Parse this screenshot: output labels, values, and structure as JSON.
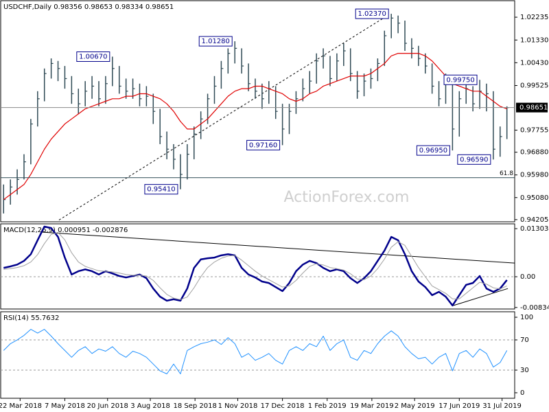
{
  "chart_data": {
    "type": "ohlc",
    "title": "USDCHF,Daily  0.98356 0.98653 0.98334 0.98651",
    "watermark": "ActionForex.com",
    "bar_color": "#2f4a55",
    "xlim": [
      "2018-03-02",
      "2019-08-13"
    ],
    "xticks": [
      {
        "value": "2018-03-22",
        "label": "22 Mar 2018"
      },
      {
        "value": "2018-05-07",
        "label": "7 May 2018"
      },
      {
        "value": "2018-06-20",
        "label": "20 Jun 2018"
      },
      {
        "value": "2018-08-03",
        "label": "3 Aug 2018"
      },
      {
        "value": "2018-09-18",
        "label": "18 Sep 2018"
      },
      {
        "value": "2018-11-01",
        "label": "1 Nov 2018"
      },
      {
        "value": "2018-12-17",
        "label": "17 Dec 2018"
      },
      {
        "value": "2019-02-01",
        "label": "1 Feb 2019"
      },
      {
        "value": "2019-03-19",
        "label": "19 Mar 2019"
      },
      {
        "value": "2019-05-02",
        "label": "2 May 2019"
      },
      {
        "value": "2019-06-17",
        "label": "17 Jun 2019"
      },
      {
        "value": "2019-07-31",
        "label": "31 Jul 2019"
      }
    ],
    "x": [
      "2018-03-05",
      "2018-03-12",
      "2018-03-19",
      "2018-03-26",
      "2018-04-02",
      "2018-04-09",
      "2018-04-16",
      "2018-04-23",
      "2018-04-30",
      "2018-05-07",
      "2018-05-14",
      "2018-05-21",
      "2018-05-28",
      "2018-06-04",
      "2018-06-11",
      "2018-06-18",
      "2018-06-25",
      "2018-07-02",
      "2018-07-09",
      "2018-07-16",
      "2018-07-23",
      "2018-07-30",
      "2018-08-06",
      "2018-08-13",
      "2018-08-20",
      "2018-08-27",
      "2018-09-03",
      "2018-09-10",
      "2018-09-17",
      "2018-09-24",
      "2018-10-01",
      "2018-10-08",
      "2018-10-15",
      "2018-10-22",
      "2018-10-29",
      "2018-11-05",
      "2018-11-12",
      "2018-11-19",
      "2018-11-26",
      "2018-12-03",
      "2018-12-10",
      "2018-12-17",
      "2018-12-24",
      "2018-12-31",
      "2019-01-07",
      "2019-01-14",
      "2019-01-21",
      "2019-01-28",
      "2019-02-04",
      "2019-02-11",
      "2019-02-18",
      "2019-02-25",
      "2019-03-04",
      "2019-03-11",
      "2019-03-18",
      "2019-03-25",
      "2019-04-01",
      "2019-04-08",
      "2019-04-15",
      "2019-04-22",
      "2019-04-29",
      "2019-05-06",
      "2019-05-13",
      "2019-05-20",
      "2019-05-27",
      "2019-06-03",
      "2019-06-10",
      "2019-06-17",
      "2019-06-24",
      "2019-07-01",
      "2019-07-08",
      "2019-07-15",
      "2019-07-22",
      "2019-07-29",
      "2019-08-05"
    ],
    "high": [
      0.956,
      0.958,
      0.962,
      0.968,
      0.982,
      0.993,
      1.002,
      1.006,
      1.005,
      1.003,
      0.999,
      0.994,
      0.997,
      0.999,
      0.997,
      0.999,
      1.0067,
      1.003,
      0.998,
      0.998,
      0.996,
      0.995,
      0.992,
      0.986,
      0.977,
      0.972,
      0.968,
      0.972,
      0.979,
      0.985,
      0.992,
      0.999,
      1.005,
      1.01,
      1.0128,
      1.01,
      1.004,
      0.998,
      0.996,
      0.997,
      0.995,
      0.988,
      0.988,
      0.993,
      0.998,
      1.001,
      1.008,
      1.01,
      1.007,
      1.008,
      1.012,
      1.01,
      1.001,
      1.0,
      1.002,
      1.006,
      1.017,
      1.0237,
      1.023,
      1.021,
      1.014,
      1.011,
      1.008,
      1.004,
      0.997,
      1.0,
      0.998,
      0.993,
      0.997,
      0.995,
      0.9975,
      0.996,
      0.993,
      0.979,
      0.987
    ],
    "low": [
      0.9445,
      0.948,
      0.952,
      0.958,
      0.964,
      0.979,
      0.989,
      0.998,
      0.997,
      0.994,
      0.988,
      0.984,
      0.987,
      0.99,
      0.987,
      0.988,
      0.995,
      0.992,
      0.99,
      0.99,
      0.987,
      0.987,
      0.98,
      0.972,
      0.966,
      0.962,
      0.9541,
      0.958,
      0.966,
      0.974,
      0.98,
      0.988,
      0.994,
      1.0,
      1.004,
      1.0,
      0.993,
      0.99,
      0.986,
      0.988,
      0.982,
      0.9716,
      0.976,
      0.984,
      0.989,
      0.992,
      0.996,
      1.002,
      0.995,
      0.997,
      1.003,
      0.997,
      0.99,
      0.991,
      0.994,
      0.997,
      1.003,
      1.014,
      1.016,
      1.009,
      1.006,
      1.003,
      1.0,
      0.992,
      0.987,
      0.988,
      0.9695,
      0.975,
      0.988,
      0.985,
      0.986,
      0.985,
      0.9659,
      0.967,
      0.974
    ],
    "close": [
      0.95,
      0.955,
      0.958,
      0.965,
      0.98,
      0.99,
      1.0,
      1.004,
      1.002,
      0.998,
      0.992,
      0.988,
      0.993,
      0.995,
      0.99,
      0.996,
      1.002,
      0.995,
      0.993,
      0.994,
      0.99,
      0.991,
      0.985,
      0.975,
      0.97,
      0.966,
      0.96,
      0.968,
      0.976,
      0.982,
      0.99,
      0.995,
      1.002,
      1.008,
      1.01,
      1.003,
      0.996,
      0.993,
      0.99,
      0.994,
      0.985,
      0.978,
      0.985,
      0.99,
      0.994,
      0.997,
      1.005,
      1.007,
      0.998,
      1.005,
      1.009,
      1.0,
      0.993,
      0.997,
      0.998,
      1.004,
      1.015,
      1.022,
      1.02,
      1.012,
      1.01,
      1.006,
      1.003,
      0.995,
      0.99,
      0.997,
      0.978,
      0.99,
      0.994,
      0.988,
      0.993,
      0.992,
      0.97,
      0.975,
      0.9865
    ],
    "series": [
      {
        "color": "#e00000",
        "values": [
          0.95,
          0.952,
          0.954,
          0.956,
          0.96,
          0.965,
          0.97,
          0.974,
          0.977,
          0.98,
          0.982,
          0.984,
          0.986,
          0.987,
          0.988,
          0.989,
          0.99,
          0.99,
          0.991,
          0.991,
          0.992,
          0.992,
          0.991,
          0.99,
          0.988,
          0.985,
          0.981,
          0.978,
          0.978,
          0.98,
          0.982,
          0.985,
          0.988,
          0.991,
          0.993,
          0.994,
          0.994,
          0.995,
          0.995,
          0.994,
          0.993,
          0.992,
          0.99,
          0.989,
          0.99,
          0.992,
          0.993,
          0.995,
          0.996,
          0.997,
          0.998,
          0.999,
          0.999,
          0.999,
          1.0,
          1.002,
          1.004,
          1.007,
          1.008,
          1.008,
          1.008,
          1.008,
          1.007,
          1.005,
          1.002,
          0.999,
          0.996,
          0.995,
          0.994,
          0.993,
          0.993,
          0.991,
          0.989,
          0.987,
          0.986
        ]
      }
    ],
    "ylim": [
      0.9412,
      1.0289
    ],
    "yticks": [
      1.02235,
      {
        "value": 1.0133,
        "label": "1.01330"
      },
      {
        "value": 1.0043,
        "label": "1.00430"
      },
      0.99525,
      0.97755,
      {
        "value": 0.9688,
        "label": "0.96880"
      },
      {
        "value": 0.9598,
        "label": "0.95980"
      },
      {
        "value": 0.9508,
        "label": "0.95080"
      },
      0.94205
    ],
    "last_price": 0.98651,
    "fib_line": {
      "value": 0.9587,
      "label": "61.8"
    },
    "annotations": [
      {
        "x": "2018-06-25",
        "value": 1.0067,
        "label": "1.00670"
      },
      {
        "x": "2018-09-03",
        "value": 0.9541,
        "label": "0.95410"
      },
      {
        "x": "2018-10-29",
        "value": 1.0128,
        "label": "1.01280"
      },
      {
        "x": "2018-12-17",
        "value": 0.9716,
        "label": "0.97160"
      },
      {
        "x": "2019-04-08",
        "value": 1.0237,
        "label": "1.02370"
      },
      {
        "x": "2019-06-10",
        "value": 0.9695,
        "label": "0.96950"
      },
      {
        "x": "2019-07-08",
        "value": 0.9975,
        "label": "0.99750"
      },
      {
        "x": "2019-07-22",
        "value": 0.9659,
        "label": "0.96590"
      }
    ],
    "trendlines": [
      {
        "from": [
          "2018-05-01",
          0.9419
        ],
        "to": [
          "2019-04-05",
          1.0232
        ],
        "dash": true
      }
    ],
    "indicators": [
      {
        "type": "line",
        "title": "MACD(12,26,9) 0.000951 -0.002876",
        "ylim": [
          -0.00875,
          0.01434
        ],
        "yticks": [
          0.013034,
          {
            "value": 0,
            "label": "0.00"
          },
          -0.00834
        ],
        "levels": [
          0
        ],
        "series": [
          {
            "color": "#00008b",
            "width": 2.5,
            "values": [
              0.0024,
              0.0028,
              0.0033,
              0.0043,
              0.0061,
              0.0099,
              0.0136,
              0.0132,
              0.0108,
              0.0052,
              0.0006,
              0.0015,
              0.002,
              0.0015,
              0.0006,
              0.0015,
              0.0009,
              0.0002,
              -0.0002,
              0.0002,
              0.0006,
              -0.0004,
              -0.0032,
              -0.0054,
              -0.0065,
              -0.0061,
              -0.0065,
              -0.0032,
              0.0024,
              0.0047,
              0.005,
              0.0052,
              0.0058,
              0.0061,
              0.0058,
              0.0024,
              0.0006,
              -0.0002,
              -0.0013,
              -0.0017,
              -0.0028,
              -0.0039,
              -0.0017,
              0.0015,
              0.0033,
              0.0043,
              0.0037,
              0.0024,
              0.0015,
              0.002,
              0.0015,
              -0.0004,
              -0.0017,
              -0.0004,
              0.0015,
              0.0043,
              0.0071,
              0.0108,
              0.0099,
              0.0061,
              0.0015,
              -0.0013,
              -0.0028,
              -0.005,
              -0.0041,
              -0.0054,
              -0.0078,
              -0.005,
              -0.0022,
              -0.0017,
              0.0002,
              -0.0032,
              -0.0041,
              -0.0032,
              -0.0009
            ]
          },
          {
            "color": "#a0a0a0",
            "width": 1,
            "values": [
              0.002,
              0.0022,
              0.0025,
              0.003,
              0.004,
              0.006,
              0.009,
              0.0115,
              0.012,
              0.01,
              0.0065,
              0.004,
              0.0028,
              0.0022,
              0.0016,
              0.0015,
              0.0013,
              0.001,
              0.0006,
              0.0004,
              0.0004,
              0.0002,
              -0.001,
              -0.003,
              -0.0048,
              -0.0058,
              -0.0062,
              -0.0055,
              -0.003,
              0.0,
              0.0025,
              0.004,
              0.005,
              0.0056,
              0.0058,
              0.0045,
              0.003,
              0.0015,
              0.0002,
              -0.0008,
              -0.0018,
              -0.0028,
              -0.0025,
              -0.001,
              0.001,
              0.0028,
              0.0035,
              0.0032,
              0.0025,
              0.0022,
              0.0018,
              0.0008,
              -0.0006,
              -0.0008,
              0.0002,
              0.0022,
              0.0048,
              0.008,
              0.0095,
              0.0085,
              0.0055,
              0.0025,
              0.0,
              -0.0025,
              -0.0035,
              -0.0045,
              -0.006,
              -0.006,
              -0.0045,
              -0.003,
              -0.0015,
              -0.002,
              -0.003,
              -0.0033,
              -0.0025
            ]
          }
        ],
        "trendlines": [
          {
            "from": [
              "2018-04-13",
              0.0121
            ],
            "to": [
              "2019-08-13",
              0.0037
            ]
          },
          {
            "from": [
              "2019-06-11",
              -0.0078
            ],
            "to": [
              "2019-08-06",
              -0.0032
            ]
          }
        ]
      },
      {
        "type": "line",
        "title": "RSI(14) 55.7632",
        "ylim": [
          -7.3,
          107.3
        ],
        "yticks": [
          100,
          70,
          30,
          0
        ],
        "levels": [
          70,
          30
        ],
        "series": [
          {
            "color": "#1e90ff",
            "width": 1,
            "values": [
              56,
              65,
              70,
              76,
              84,
              79,
              84,
              75,
              65,
              56,
              47,
              56,
              61,
              52,
              58,
              55,
              61,
              52,
              47,
              55,
              52,
              47,
              38,
              29,
              25,
              38,
              25,
              56,
              61,
              65,
              67,
              70,
              64,
              73,
              65,
              47,
              52,
              43,
              47,
              52,
              43,
              38,
              56,
              61,
              56,
              65,
              61,
              75,
              56,
              65,
              70,
              47,
              43,
              56,
              52,
              65,
              75,
              82,
              75,
              61,
              52,
              45,
              47,
              38,
              47,
              52,
              29,
              52,
              56,
              47,
              58,
              52,
              34,
              40,
              56
            ]
          }
        ]
      }
    ]
  }
}
